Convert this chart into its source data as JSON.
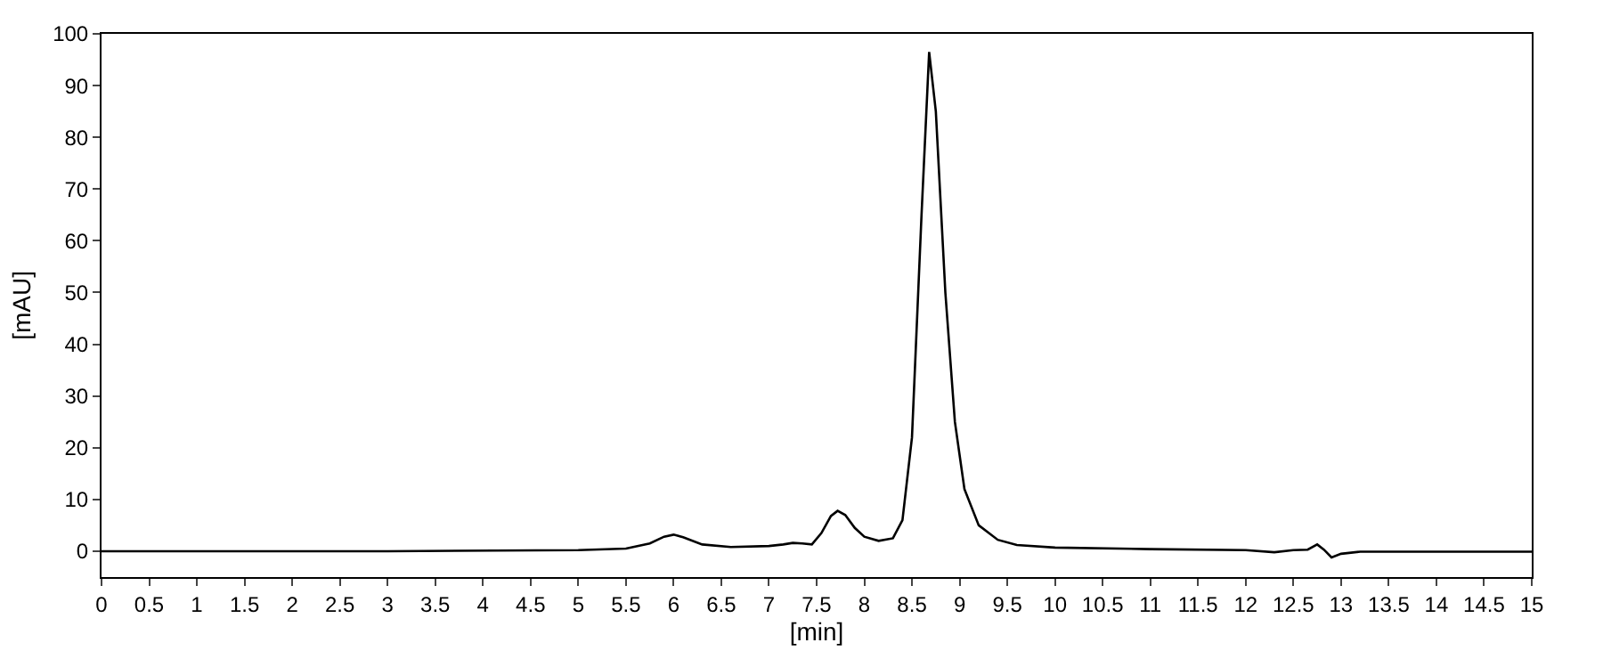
{
  "chart_data": {
    "type": "line",
    "xlabel": "[min]",
    "ylabel": "[mAU]",
    "series": [
      {
        "color": "#000000",
        "x": [
          0,
          3,
          5,
          5.5,
          5.75,
          5.9,
          6.0,
          6.1,
          6.3,
          6.6,
          7.0,
          7.15,
          7.25,
          7.35,
          7.45,
          7.55,
          7.65,
          7.72,
          7.8,
          7.9,
          8.0,
          8.15,
          8.3,
          8.4,
          8.5,
          8.6,
          8.68,
          8.75,
          8.85,
          8.95,
          9.05,
          9.2,
          9.4,
          9.6,
          10,
          11,
          12,
          12.3,
          12.5,
          12.65,
          12.75,
          12.82,
          12.9,
          13.0,
          13.2,
          14,
          15
        ],
        "values": [
          0,
          0,
          0.2,
          0.5,
          1.5,
          2.8,
          3.2,
          2.7,
          1.3,
          0.8,
          1.0,
          1.3,
          1.6,
          1.5,
          1.3,
          3.5,
          6.8,
          7.8,
          7.0,
          4.5,
          2.8,
          2.0,
          2.5,
          6,
          22,
          65,
          96.5,
          85,
          50,
          25,
          12,
          5,
          2.2,
          1.2,
          0.7,
          0.4,
          0.2,
          -0.2,
          0.2,
          0.3,
          1.3,
          0.3,
          -1.2,
          -0.5,
          -0.1,
          -0.1,
          -0.1
        ]
      }
    ],
    "xlim": [
      0,
      15
    ],
    "xticks": [
      0,
      {
        "value": 0.5,
        "label": "0.5"
      },
      1,
      {
        "value": 1.5,
        "label": "1.5"
      },
      2,
      {
        "value": 2.5,
        "label": "2.5"
      },
      3,
      {
        "value": 3.5,
        "label": "3.5"
      },
      4,
      {
        "value": 4.5,
        "label": "4.5"
      },
      5,
      {
        "value": 5.5,
        "label": "5.5"
      },
      6,
      {
        "value": 6.5,
        "label": "6.5"
      },
      7,
      {
        "value": 7.5,
        "label": "7.5"
      },
      8,
      {
        "value": 8.5,
        "label": "8.5"
      },
      9,
      {
        "value": 9.5,
        "label": "9.5"
      },
      10,
      {
        "value": 10.5,
        "label": "10.5"
      },
      11,
      {
        "value": 11.5,
        "label": "11.5"
      },
      12,
      {
        "value": 12.5,
        "label": "12.5"
      },
      13,
      {
        "value": 13.5,
        "label": "13.5"
      },
      14,
      {
        "value": 14.5,
        "label": "14.5"
      },
      15
    ],
    "ylim": [
      -5,
      100
    ],
    "yticks": [
      0,
      10,
      20,
      30,
      40,
      50,
      60,
      70,
      80,
      90,
      100
    ],
    "legend": false,
    "marker": "none",
    "line_style": "solid"
  }
}
